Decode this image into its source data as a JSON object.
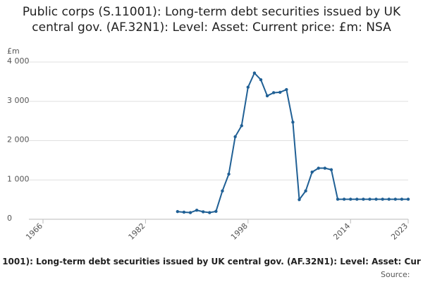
{
  "chart_data": {
    "type": "line",
    "title": "Public corps (S.11001): Long-term debt securities issued by UK central gov. (AF.32N1): Level: Asset: Current price: £m: NSA",
    "y_unit": "£m",
    "caption": "1001): Long-term debt securities issued by UK central gov. (AF.32N1): Level: Asset: Cur",
    "source": "Source:",
    "x": [
      1987,
      1988,
      1989,
      1990,
      1991,
      1992,
      1993,
      1994,
      1995,
      1996,
      1997,
      1998,
      1999,
      2000,
      2001,
      2002,
      2003,
      2004,
      2005,
      2006,
      2007,
      2008,
      2009,
      2010,
      2011,
      2012,
      2013,
      2014,
      2015,
      2016,
      2017,
      2018,
      2019,
      2020,
      2021,
      2022,
      2023
    ],
    "series": [
      {
        "color": "#206095",
        "values": [
          195,
          180,
          170,
          230,
          190,
          170,
          200,
          720,
          1150,
          2100,
          2380,
          3360,
          3720,
          3550,
          3140,
          3220,
          3230,
          3300,
          2470,
          500,
          720,
          1200,
          1300,
          1300,
          1260,
          510,
          510,
          510,
          510,
          510,
          510,
          510,
          510,
          510,
          510,
          510,
          510
        ]
      }
    ],
    "xlim": [
      1966,
      2023
    ],
    "xticks": [
      1966,
      1982,
      1998,
      2014,
      2023
    ],
    "ylim": [
      0,
      4000
    ],
    "yticks": [
      0,
      {
        "value": 1000,
        "label": "1 000"
      },
      {
        "value": 2000,
        "label": "2 000"
      },
      {
        "value": 3000,
        "label": "3 000"
      },
      {
        "value": 4000,
        "label": "4 000"
      }
    ],
    "grid": true
  }
}
